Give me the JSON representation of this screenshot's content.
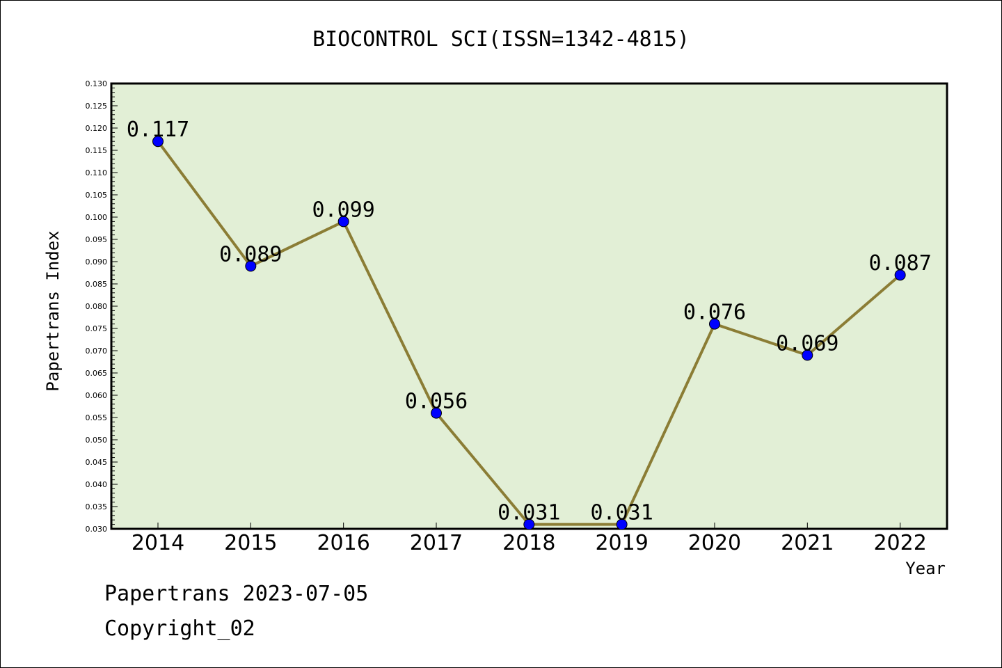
{
  "chart_data": {
    "type": "line",
    "title": "BIOCONTROL SCI(ISSN=1342-4815)",
    "xlabel": "Year",
    "ylabel": "Papertrans Index",
    "categories": [
      "2014",
      "2015",
      "2016",
      "2017",
      "2018",
      "2019",
      "2020",
      "2021",
      "2022"
    ],
    "values": [
      0.117,
      0.089,
      0.099,
      0.056,
      0.031,
      0.031,
      0.076,
      0.069,
      0.087
    ],
    "data_labels": [
      "0.117",
      "0.089",
      "0.099",
      "0.056",
      "0.031",
      "0.031",
      "0.076",
      "0.069",
      "0.087"
    ],
    "ylim": [
      0.03,
      0.13
    ],
    "yticks": [
      "0.030",
      "0.035",
      "0.040",
      "0.045",
      "0.050",
      "0.055",
      "0.060",
      "0.065",
      "0.070",
      "0.075",
      "0.080",
      "0.085",
      "0.090",
      "0.095",
      "0.100",
      "0.105",
      "0.110",
      "0.115",
      "0.120",
      "0.125",
      "0.130"
    ],
    "grid": false,
    "colors": {
      "plot_background": "#e2efd6",
      "line": "#8b7d35",
      "marker": "#0000ff"
    }
  },
  "footer": {
    "date_line": "Papertrans 2023-07-05",
    "copyright_line": "Copyright_02"
  }
}
